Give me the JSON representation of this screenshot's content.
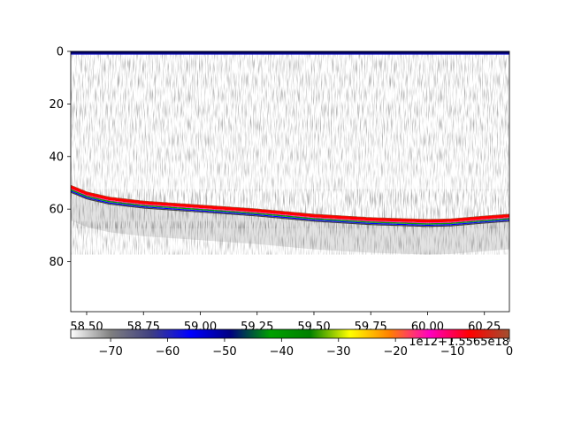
{
  "chart_data": {
    "type": "heatmap",
    "title": "",
    "xlabel": "",
    "ylabel": "",
    "x_offset_text": "1e12+1.5565e18",
    "xlim": [
      58.43,
      60.36
    ],
    "ylim": [
      99,
      0
    ],
    "x_ticks": [
      58.5,
      58.75,
      59.0,
      59.25,
      59.5,
      59.75,
      60.0,
      60.25
    ],
    "x_tick_labels": [
      "58.50",
      "58.75",
      "59.00",
      "59.25",
      "59.50",
      "59.75",
      "60.00",
      "60.25"
    ],
    "y_ticks": [
      0,
      20,
      40,
      60,
      80
    ],
    "y_tick_labels": [
      "0",
      "20",
      "40",
      "60",
      "80"
    ],
    "bottom_line": {
      "x": [
        58.43,
        58.5,
        58.6,
        58.75,
        59.0,
        59.25,
        59.5,
        59.75,
        60.0,
        60.1,
        60.25,
        60.36
      ],
      "y": [
        51.5,
        54.0,
        56.0,
        57.5,
        59.0,
        60.5,
        62.5,
        63.8,
        64.5,
        64.3,
        63.2,
        62.5
      ]
    },
    "colorbar": {
      "range": [
        -77,
        0
      ],
      "ticks": [
        -70,
        -60,
        -50,
        -40,
        -30,
        -20,
        -10,
        0
      ],
      "tick_labels": [
        "−70",
        "−60",
        "−50",
        "−40",
        "−30",
        "−20",
        "−10",
        "0"
      ],
      "colors": [
        "#ffffff",
        "#808080",
        "#404080",
        "#0000ff",
        "#000080",
        "#00a000",
        "#008000",
        "#ffff00",
        "#ff8000",
        "#ff00c0",
        "#ff0000",
        "#a05030"
      ]
    },
    "grid": false
  }
}
